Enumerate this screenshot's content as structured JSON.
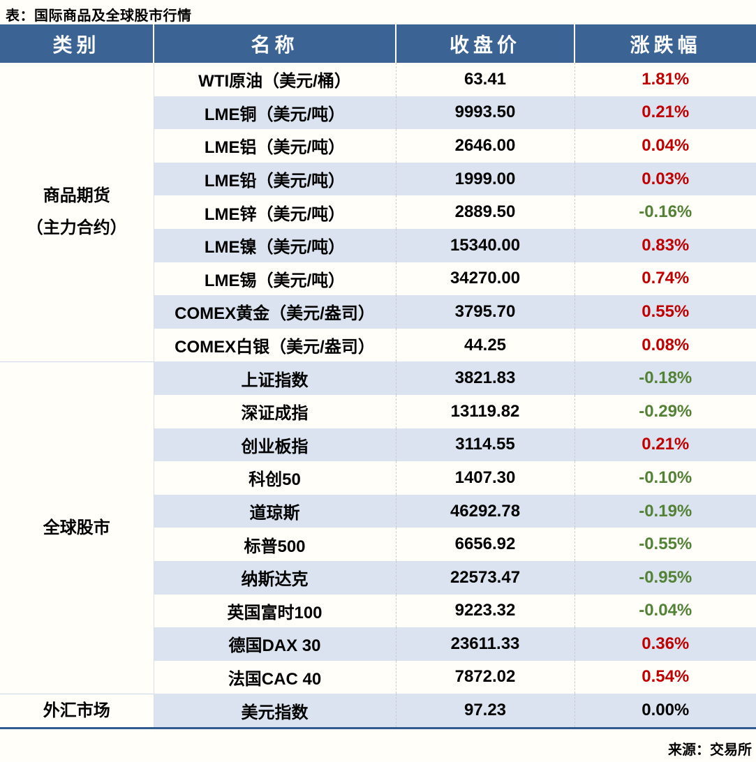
{
  "page": {
    "title": "表：国际商品及全球股市行情",
    "source": "来源：交易所"
  },
  "colors": {
    "header_bg": "#3B6394",
    "header_text": "#FFFFFF",
    "stripe_blue": "#DAE3EF",
    "row_white": "#FFFEF9",
    "up_red": "#C00000",
    "down_green": "#538135",
    "flat_black": "#000000",
    "bottom_rule": "#2F5B90"
  },
  "table": {
    "headers": [
      "类别",
      "名称",
      "收盘价",
      "涨跌幅"
    ],
    "groups": [
      {
        "category_lines": [
          "商品期货",
          "（主力合约）"
        ],
        "rows": [
          {
            "name": "WTI原油（美元/桶）",
            "close": "63.41",
            "change": "1.81%",
            "dir": "up"
          },
          {
            "name": "LME铜（美元/吨）",
            "close": "9993.50",
            "change": "0.21%",
            "dir": "up"
          },
          {
            "name": "LME铝（美元/吨）",
            "close": "2646.00",
            "change": "0.04%",
            "dir": "up"
          },
          {
            "name": "LME铅（美元/吨）",
            "close": "1999.00",
            "change": "0.03%",
            "dir": "up"
          },
          {
            "name": "LME锌（美元/吨）",
            "close": "2889.50",
            "change": "-0.16%",
            "dir": "down"
          },
          {
            "name": "LME镍（美元/吨）",
            "close": "15340.00",
            "change": "0.83%",
            "dir": "up"
          },
          {
            "name": "LME锡（美元/吨）",
            "close": "34270.00",
            "change": "0.74%",
            "dir": "up"
          },
          {
            "name": "COMEX黄金（美元/盎司）",
            "close": "3795.70",
            "change": "0.55%",
            "dir": "up"
          },
          {
            "name": "COMEX白银（美元/盎司）",
            "close": "44.25",
            "change": "0.08%",
            "dir": "up"
          }
        ]
      },
      {
        "category_lines": [
          "全球股市"
        ],
        "rows": [
          {
            "name": "上证指数",
            "close": "3821.83",
            "change": "-0.18%",
            "dir": "down"
          },
          {
            "name": "深证成指",
            "close": "13119.82",
            "change": "-0.29%",
            "dir": "down"
          },
          {
            "name": "创业板指",
            "close": "3114.55",
            "change": "0.21%",
            "dir": "up"
          },
          {
            "name": "科创50",
            "close": "1407.30",
            "change": "-0.10%",
            "dir": "down"
          },
          {
            "name": "道琼斯",
            "close": "46292.78",
            "change": "-0.19%",
            "dir": "down"
          },
          {
            "name": "标普500",
            "close": "6656.92",
            "change": "-0.55%",
            "dir": "down"
          },
          {
            "name": "纳斯达克",
            "close": "22573.47",
            "change": "-0.95%",
            "dir": "down"
          },
          {
            "name": "英国富时100",
            "close": "9223.32",
            "change": "-0.04%",
            "dir": "down"
          },
          {
            "name": "德国DAX 30",
            "close": "23611.33",
            "change": "0.36%",
            "dir": "up"
          },
          {
            "name": "法国CAC 40",
            "close": "7872.02",
            "change": "0.54%",
            "dir": "up"
          }
        ]
      },
      {
        "category_lines": [
          "外汇市场"
        ],
        "rows": [
          {
            "name": "美元指数",
            "close": "97.23",
            "change": "0.00%",
            "dir": "flat"
          }
        ]
      }
    ]
  },
  "chart_data": {
    "type": "table",
    "title": "表：国际商品及全球股市行情",
    "columns": [
      "类别",
      "名称",
      "收盘价",
      "涨跌幅"
    ],
    "rows": [
      [
        "商品期货（主力合约）",
        "WTI原油（美元/桶）",
        63.41,
        "1.81%"
      ],
      [
        "商品期货（主力合约）",
        "LME铜（美元/吨）",
        9993.5,
        "0.21%"
      ],
      [
        "商品期货（主力合约）",
        "LME铝（美元/吨）",
        2646.0,
        "0.04%"
      ],
      [
        "商品期货（主力合约）",
        "LME铅（美元/吨）",
        1999.0,
        "0.03%"
      ],
      [
        "商品期货（主力合约）",
        "LME锌（美元/吨）",
        2889.5,
        "-0.16%"
      ],
      [
        "商品期货（主力合约）",
        "LME镍（美元/吨）",
        15340.0,
        "0.83%"
      ],
      [
        "商品期货（主力合约）",
        "LME锡（美元/吨）",
        34270.0,
        "0.74%"
      ],
      [
        "商品期货（主力合约）",
        "COMEX黄金（美元/盎司）",
        3795.7,
        "0.55%"
      ],
      [
        "商品期货（主力合约）",
        "COMEX白银（美元/盎司）",
        44.25,
        "0.08%"
      ],
      [
        "全球股市",
        "上证指数",
        3821.83,
        "-0.18%"
      ],
      [
        "全球股市",
        "深证成指",
        13119.82,
        "-0.29%"
      ],
      [
        "全球股市",
        "创业板指",
        3114.55,
        "0.21%"
      ],
      [
        "全球股市",
        "科创50",
        1407.3,
        "-0.10%"
      ],
      [
        "全球股市",
        "道琼斯",
        46292.78,
        "-0.19%"
      ],
      [
        "全球股市",
        "标普500",
        6656.92,
        "-0.55%"
      ],
      [
        "全球股市",
        "纳斯达克",
        22573.47,
        "-0.95%"
      ],
      [
        "全球股市",
        "英国富时100",
        9223.32,
        "-0.04%"
      ],
      [
        "全球股市",
        "德国DAX 30",
        23611.33,
        "0.36%"
      ],
      [
        "全球股市",
        "法国CAC 40",
        7872.02,
        "0.54%"
      ],
      [
        "外汇市场",
        "美元指数",
        97.23,
        "0.00%"
      ]
    ],
    "notes": "涨跌幅颜色：红=上涨(#C00000)，绿=下跌(#538135)，黑=持平",
    "source": "来源：交易所"
  }
}
